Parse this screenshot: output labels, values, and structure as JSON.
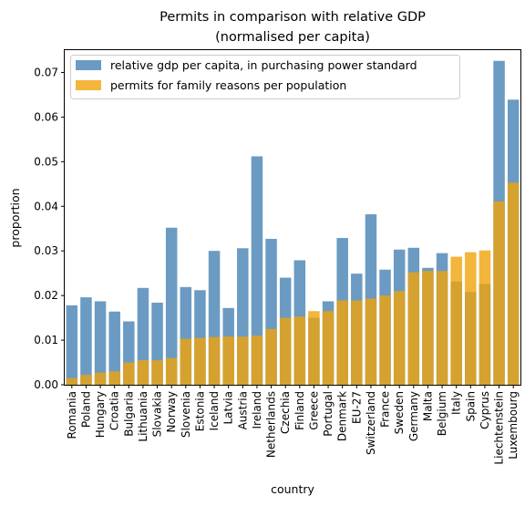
{
  "chart_data": {
    "type": "bar",
    "title": [
      "Permits in comparison with relative GDP",
      "(normalised per capita)"
    ],
    "xlabel": "country",
    "ylabel": "proportion",
    "ylim": [
      0,
      0.075
    ],
    "yticks": [
      "0.00",
      "0.01",
      "0.02",
      "0.03",
      "0.04",
      "0.05",
      "0.06",
      "0.07"
    ],
    "legend_position": "top-left",
    "grid": false,
    "categories": [
      "Romania",
      "Poland",
      "Hungary",
      "Croatia",
      "Bulgaria",
      "Lithuania",
      "Slovakia",
      "Norway",
      "Slovenia",
      "Estonia",
      "Iceland",
      "Latvia",
      "Austria",
      "Ireland",
      "Netherlands",
      "Czechia",
      "Finland",
      "Greece",
      "Portugal",
      "Denmark",
      "EU-27",
      "Switzerland",
      "France",
      "Sweden",
      "Germany",
      "Malta",
      "Belgium",
      "Italy",
      "Spain",
      "Cyprus",
      "Liechtenstein",
      "Luxembourg"
    ],
    "series": [
      {
        "name": "relative gdp per capita, in purchasing power standard",
        "color": "#4682b4",
        "values": [
          0.0178,
          0.0196,
          0.0187,
          0.0164,
          0.0142,
          0.0217,
          0.0184,
          0.0352,
          0.0219,
          0.0212,
          0.03,
          0.0172,
          0.0306,
          0.0512,
          0.0327,
          0.024,
          0.0279,
          0.015,
          0.0187,
          0.0329,
          0.0249,
          0.0382,
          0.0258,
          0.0303,
          0.0307,
          0.0262,
          0.0295,
          0.0231,
          0.0208,
          0.0226,
          0.0726,
          0.0639
        ]
      },
      {
        "name": "permits for family reasons per population",
        "color": "#f0a30a",
        "values": [
          0.0015,
          0.0022,
          0.0027,
          0.003,
          0.005,
          0.0055,
          0.0055,
          0.006,
          0.0103,
          0.0105,
          0.0107,
          0.0108,
          0.0108,
          0.011,
          0.0125,
          0.015,
          0.0153,
          0.0165,
          0.0165,
          0.0189,
          0.0189,
          0.0193,
          0.02,
          0.021,
          0.0252,
          0.0255,
          0.0255,
          0.0287,
          0.0297,
          0.0301,
          0.0411,
          0.0453
        ]
      }
    ]
  }
}
